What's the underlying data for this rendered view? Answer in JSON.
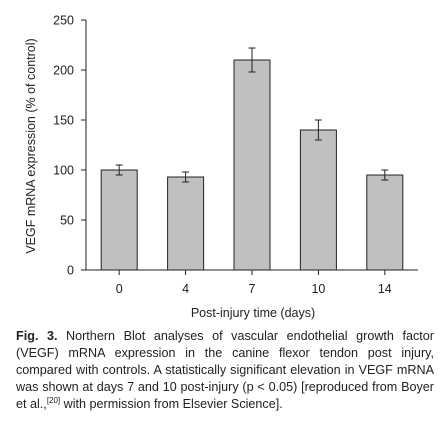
{
  "figure": {
    "label": "Fig. 3.",
    "caption_part1": " Northern Blot analyses of vascular endothelial growth factor (VEGF) mRNA expression in the canine flexor tendon post injury, compared with controls. A statistically significant elevation in VEGF mRNA was shown at days 7 and 10 post-injury (p < 0.05) [reproduced from Boyer et al.,",
    "citation": "[20]",
    "caption_part2": " with permission from Elsevier Science]."
  },
  "chart_data": {
    "type": "bar",
    "categories": [
      "0",
      "4",
      "7",
      "10",
      "14"
    ],
    "values": [
      100,
      93,
      210,
      140,
      95
    ],
    "errors": [
      5,
      5,
      12,
      10,
      5
    ],
    "xlabel": "Post-injury time (days)",
    "ylabel": "VEGF mRNA expression (% of control)",
    "ylim": [
      0,
      250
    ],
    "yticks": [
      "0",
      "50",
      "100",
      "150",
      "200",
      "250"
    ],
    "bar_color": "#c0c0c0",
    "grid": false,
    "legend": "none"
  }
}
